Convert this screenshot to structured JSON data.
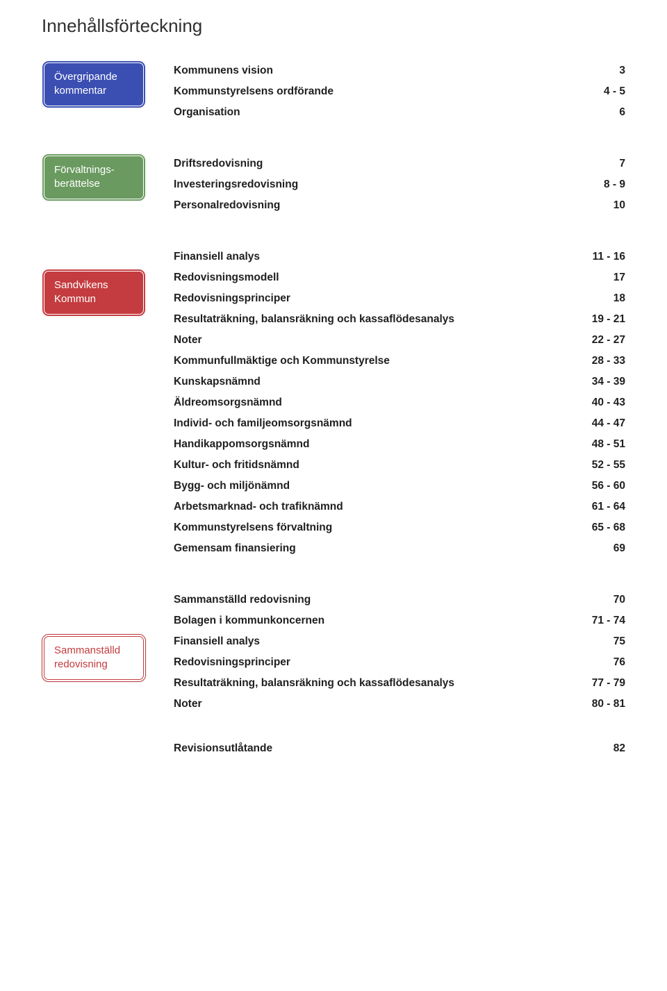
{
  "title": "Innehållsförteckning",
  "colors": {
    "blue": "#3b4fb3",
    "green": "#6a9a5f",
    "red": "#c43c3f",
    "white_border": "#c43c3f",
    "text": "#202020",
    "bg": "#ffffff"
  },
  "typography": {
    "body_fontsize": 15.5,
    "title_fontsize": 26,
    "weight_label": 700
  },
  "sections": [
    {
      "badge": {
        "text": "Övergripande kommentar",
        "color": "blue"
      },
      "entries": [
        {
          "label": "Kommunens vision",
          "page": "3"
        },
        {
          "label": "Kommunstyrelsens ordförande",
          "page": "4 - 5"
        },
        {
          "label": "Organisation",
          "page": "6"
        }
      ]
    },
    {
      "badge": {
        "text": "Förvaltnings-berättelse",
        "color": "green"
      },
      "entries": [
        {
          "label": "Driftsredovisning",
          "page": "7"
        },
        {
          "label": "Investeringsredovisning",
          "page": "8 - 9"
        },
        {
          "label": "Personalredovisning",
          "page": "10"
        }
      ]
    },
    {
      "badge": {
        "text": "Sandvikens Kommun",
        "color": "red"
      },
      "entries": [
        {
          "label": "Finansiell analys",
          "page": "11 - 16"
        },
        {
          "label": "Redovisningsmodell",
          "page": "17"
        },
        {
          "label": "Redovisningsprinciper",
          "page": "18"
        },
        {
          "label": "Resultaträkning, balansräkning och kassaflödesanalys",
          "page": "19 - 21"
        },
        {
          "label": "Noter",
          "page": "22 - 27"
        },
        {
          "label": "Kommunfullmäktige och Kommunstyrelse",
          "page": "28 - 33"
        },
        {
          "label": "Kunskapsnämnd",
          "page": "34 - 39"
        },
        {
          "label": "Äldreomsorgsnämnd",
          "page": "40 - 43"
        },
        {
          "label": "Individ- och familjeomsorgsnämnd",
          "page": "44 - 47"
        },
        {
          "label": "Handikappomsorgsnämnd",
          "page": "48 - 51"
        },
        {
          "label": "Kultur- och fritidsnämnd",
          "page": "52 - 55"
        },
        {
          "label": "Bygg- och miljönämnd",
          "page": "56 - 60"
        },
        {
          "label": "Arbetsmarknad- och trafiknämnd",
          "page": "61 - 64"
        },
        {
          "label": "Kommunstyrelsens förvaltning",
          "page": "65 - 68"
        },
        {
          "label": "Gemensam finansiering",
          "page": "69"
        }
      ]
    },
    {
      "badge": {
        "text": "Sammanställd redovisning",
        "color": "white"
      },
      "entries": [
        {
          "label": "Sammanställd redovisning",
          "page": "70"
        },
        {
          "label": "Bolagen i kommunkoncernen",
          "page": "71 - 74"
        },
        {
          "label": "Finansiell analys",
          "page": "75"
        },
        {
          "label": "Redovisningsprinciper",
          "page": "76"
        },
        {
          "label": "Resultaträkning, balansräkning och kassaflödesanalys",
          "page": "77 - 79"
        },
        {
          "label": "Noter",
          "page": "80 - 81"
        }
      ]
    }
  ],
  "footer": {
    "label": "Revisionsutlåtande",
    "page": "82"
  },
  "badge_offsets": [
    0,
    0,
    1,
    2
  ]
}
